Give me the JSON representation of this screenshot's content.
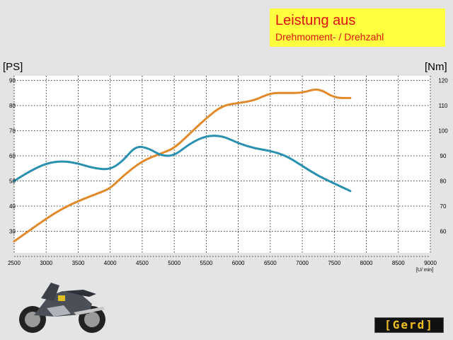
{
  "header": {
    "title": "Leistung aus",
    "subtitle": "Drehmoment- / Drehzahl"
  },
  "units": {
    "left": "[PS]",
    "right": "[Nm]"
  },
  "logo": {
    "text": "[Gerd]"
  },
  "chart_data": {
    "type": "line",
    "xlabel": "[U/ min]",
    "x_ticks": [
      2500,
      3000,
      3500,
      4000,
      4500,
      5000,
      5500,
      6000,
      6500,
      7000,
      7500,
      8000,
      8500,
      9000
    ],
    "xlim": [
      2500,
      9000
    ],
    "y_left": {
      "label": "[PS]",
      "lim": [
        20,
        90
      ],
      "ticks": [
        30,
        40,
        50,
        60,
        70,
        80,
        90
      ]
    },
    "y_right": {
      "label": "[Nm]",
      "lim": [
        50,
        120
      ],
      "ticks": [
        60,
        70,
        80,
        90,
        100,
        110,
        120
      ]
    },
    "grid": true,
    "series": [
      {
        "color": "#e08a2a",
        "axis": "left",
        "points": [
          [
            2500,
            26
          ],
          [
            3000,
            35
          ],
          [
            3250,
            39
          ],
          [
            3500,
            42
          ],
          [
            3800,
            45
          ],
          [
            4000,
            47
          ],
          [
            4200,
            52
          ],
          [
            4500,
            58
          ],
          [
            4800,
            61
          ],
          [
            5000,
            63
          ],
          [
            5250,
            69
          ],
          [
            5500,
            75
          ],
          [
            5750,
            80
          ],
          [
            6000,
            81
          ],
          [
            6250,
            82
          ],
          [
            6500,
            85
          ],
          [
            6750,
            85
          ],
          [
            7000,
            85
          ],
          [
            7250,
            87
          ],
          [
            7500,
            83
          ],
          [
            7750,
            83
          ]
        ]
      },
      {
        "color": "#2a90b0",
        "axis": "right",
        "points": [
          [
            2500,
            80
          ],
          [
            2750,
            84
          ],
          [
            3000,
            87
          ],
          [
            3250,
            88
          ],
          [
            3500,
            87
          ],
          [
            3750,
            85
          ],
          [
            4000,
            84.5
          ],
          [
            4200,
            88
          ],
          [
            4400,
            94
          ],
          [
            4600,
            93
          ],
          [
            4800,
            90
          ],
          [
            5000,
            90
          ],
          [
            5250,
            95
          ],
          [
            5500,
            98
          ],
          [
            5750,
            98
          ],
          [
            6000,
            95
          ],
          [
            6250,
            93
          ],
          [
            6500,
            92
          ],
          [
            6750,
            90
          ],
          [
            7000,
            86
          ],
          [
            7250,
            82
          ],
          [
            7500,
            79
          ],
          [
            7750,
            76
          ]
        ]
      }
    ]
  }
}
